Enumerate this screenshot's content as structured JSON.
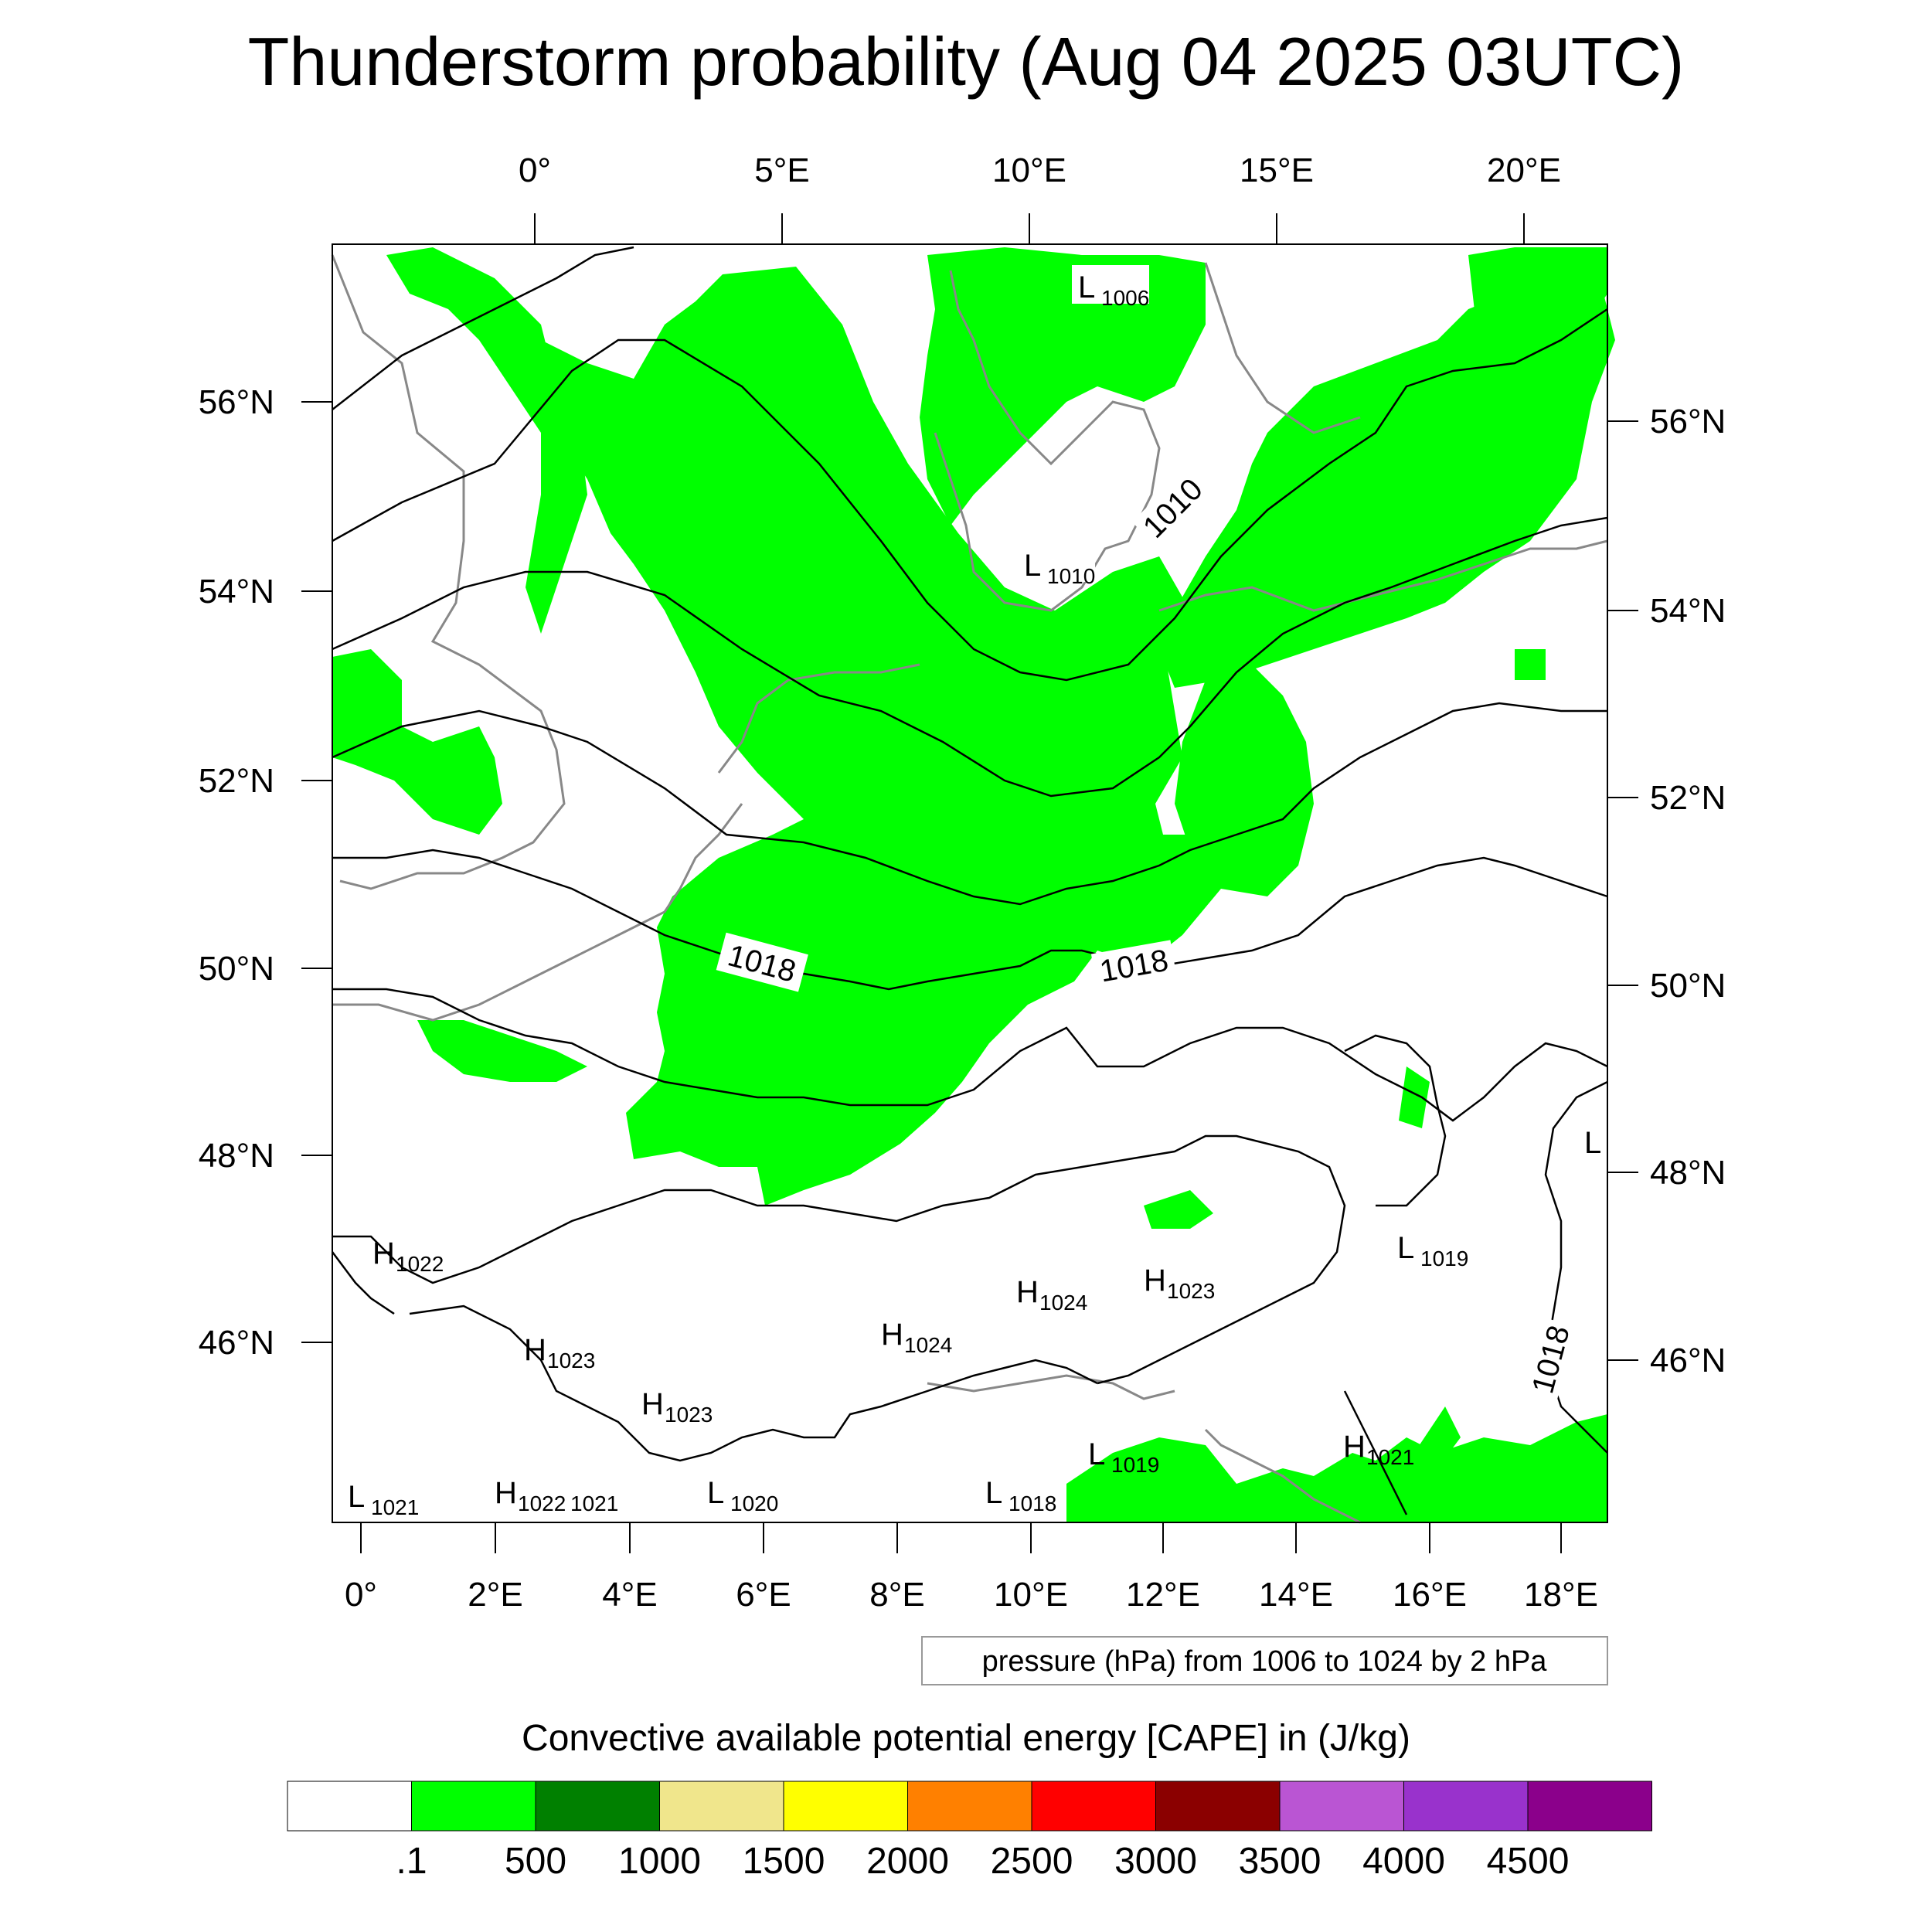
{
  "title": "Thunderstorm probability (Aug 04 2025 03UTC)",
  "top_axis_ticks": [
    "0°",
    "5°E",
    "10°E",
    "15°E",
    "20°E"
  ],
  "bottom_axis_ticks": [
    "0°",
    "2°E",
    "4°E",
    "6°E",
    "8°E",
    "10°E",
    "12°E",
    "14°E",
    "16°E",
    "18°E"
  ],
  "left_axis_ticks": [
    "56°N",
    "54°N",
    "52°N",
    "50°N",
    "48°N",
    "46°N"
  ],
  "right_axis_ticks": [
    "56°N",
    "54°N",
    "52°N",
    "50°N",
    "48°N",
    "46°N"
  ],
  "contour_info": "pressure (hPa) from 1006 to 1024 by 2 hPa",
  "isobar_labels": [
    "1018",
    "1018",
    "1010",
    "1018"
  ],
  "pressure_centers": [
    {
      "type": "L",
      "value": "1006"
    },
    {
      "type": "L",
      "value": "1010"
    },
    {
      "type": "H",
      "value": "1022"
    },
    {
      "type": "H",
      "value": "1023"
    },
    {
      "type": "H",
      "value": "1023"
    },
    {
      "type": "H",
      "value": "1024"
    },
    {
      "type": "H",
      "value": "1024"
    },
    {
      "type": "H",
      "value": "1023"
    },
    {
      "type": "L",
      "value": "1019"
    },
    {
      "type": "L",
      "value": "1019"
    },
    {
      "type": "H",
      "value": "1021"
    },
    {
      "type": "L",
      "value": "1021"
    },
    {
      "type": "H",
      "value": "1022"
    },
    {
      "type": "",
      "value": "1021"
    },
    {
      "type": "L",
      "value": "1020"
    },
    {
      "type": "L",
      "value": "1018"
    },
    {
      "type": "L",
      "value": ""
    }
  ],
  "colorbar": {
    "title": "Convective available potential energy [CAPE] in (J/kg)",
    "colors": [
      "#ffffff",
      "#00ff00",
      "#008000",
      "#f0e68c",
      "#ffff00",
      "#ff8000",
      "#ff0000",
      "#8b0000",
      "#ba55d3",
      "#9932cc",
      "#8b008b"
    ],
    "labels": [
      ".1",
      "500",
      "1000",
      "1500",
      "2000",
      "2500",
      "3000",
      "3500",
      "4000",
      "4500"
    ]
  },
  "field_color": "#00ff00"
}
